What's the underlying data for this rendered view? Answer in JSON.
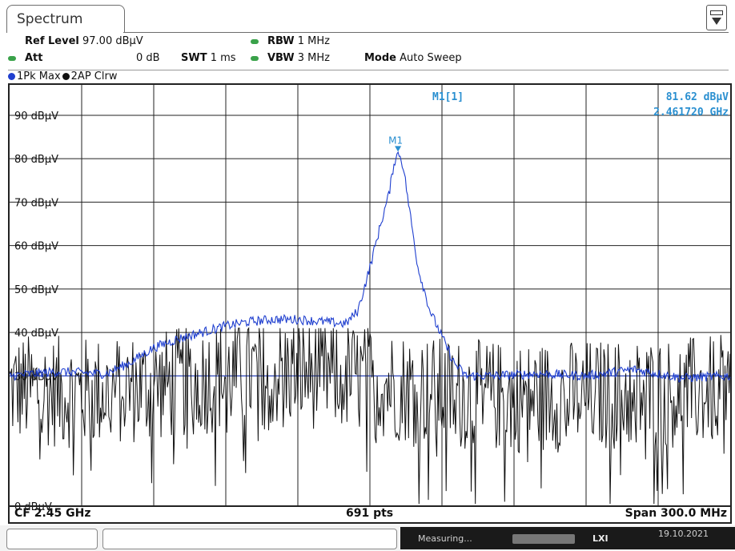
{
  "window": {
    "tab_label": "Spectrum"
  },
  "settings": {
    "ref_level_label": "Ref Level",
    "ref_level_value": "97.00 dBµV",
    "att_label": "Att",
    "att_value": "0 dB",
    "swt_label": "SWT",
    "swt_value": "1 ms",
    "rbw_label": "RBW",
    "rbw_value": "1 MHz",
    "vbw_label": "VBW",
    "vbw_value": "3 MHz",
    "mode_label": "Mode",
    "mode_value": "Auto Sweep"
  },
  "traces_legend": {
    "trace1": "1Pk Max",
    "trace2": "2AP Clrw",
    "trace1_color": "#1f3fcf",
    "trace2_color": "#111111"
  },
  "marker": {
    "name": "M1",
    "readout_label": "M1[1]",
    "readout_level": "81.62 dBµV",
    "readout_freq": "2.461720 GHz",
    "color": "#2a8fd0"
  },
  "status_bar": {
    "center": "CF 2.45 GHz",
    "points": "691 pts",
    "span": "Span 300.0 MHz"
  },
  "bottom_bar": {
    "measuring": "Measuring...",
    "lxi": "LXI",
    "date": "19.10.2021"
  },
  "chart_data": {
    "type": "line",
    "xlabel": "",
    "ylabel": "",
    "y_unit": "dBµV",
    "x_range_ghz": [
      2.3,
      2.6
    ],
    "ylim": [
      0,
      97
    ],
    "yticks": [
      90,
      80,
      70,
      60,
      50,
      40,
      30,
      0
    ],
    "ytick_labels": [
      "90 dBµV",
      "80 dBµV",
      "70 dBµV",
      "60 dBµV",
      "50 dBµV",
      "40 dBµV",
      "30 dBµV",
      "0 dBµV"
    ],
    "grid": true,
    "ref_line_dbuv": 30,
    "series": [
      {
        "name": "1Pk Max",
        "color": "#1f3fcf",
        "x_ghz": [
          2.3,
          2.32,
          2.34,
          2.35,
          2.36,
          2.37,
          2.38,
          2.39,
          2.4,
          2.41,
          2.42,
          2.43,
          2.44,
          2.445,
          2.45,
          2.455,
          2.458,
          2.46,
          2.462,
          2.464,
          2.466,
          2.47,
          2.475,
          2.48,
          2.485,
          2.49,
          2.5,
          2.52,
          2.54,
          2.56,
          2.58,
          2.6
        ],
        "y_dbuv": [
          30.0,
          31.0,
          30.5,
          33.0,
          36.5,
          38.5,
          40.0,
          41.5,
          42.5,
          43.0,
          43.0,
          42.5,
          42.0,
          45.0,
          55.0,
          66.0,
          72.0,
          79.0,
          81.6,
          78.0,
          70.0,
          55.0,
          45.0,
          39.0,
          33.0,
          30.0,
          30.0,
          30.5,
          30.0,
          31.5,
          29.5,
          30.0
        ]
      },
      {
        "name": "2AP Clrw",
        "color": "#111111",
        "description_level_mean_dbuv": 27,
        "x_ghz": [
          2.3,
          2.33,
          2.36,
          2.39,
          2.42,
          2.45,
          2.48,
          2.51,
          2.54,
          2.57,
          2.6
        ],
        "y_dbuv": [
          27.0,
          26.0,
          27.5,
          30.0,
          31.0,
          29.0,
          26.0,
          25.0,
          25.5,
          26.0,
          26.5
        ]
      }
    ]
  }
}
